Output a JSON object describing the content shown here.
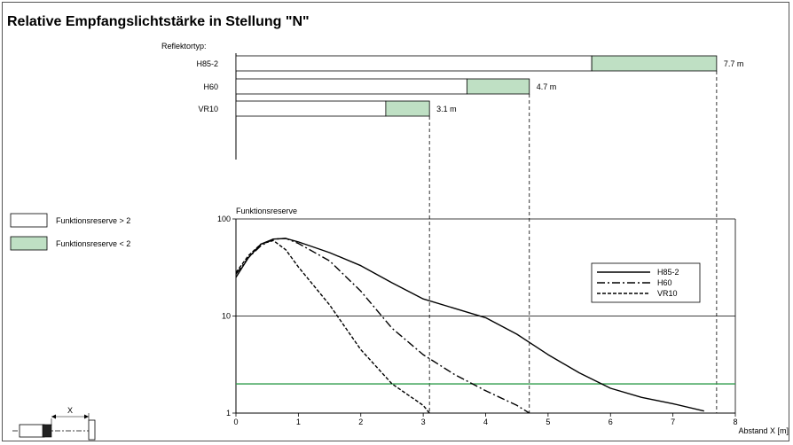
{
  "title": "Relative Empfangslichtstärke in Stellung \"N\"",
  "reflector_label": "Reflektortyp:",
  "reflectors": [
    {
      "name": "H85-2",
      "total_range": "7.7 m",
      "range_m": 7.7,
      "reserve_gt2_until_m": 5.7
    },
    {
      "name": "H60",
      "total_range": "4.7 m",
      "range_m": 4.7,
      "reserve_gt2_until_m": 3.7
    },
    {
      "name": "VR10",
      "total_range": "3.1 m",
      "range_m": 3.1,
      "reserve_gt2_until_m": 2.4
    }
  ],
  "legend_boxes": [
    {
      "label": "Funktionsreserve > 2",
      "color": "#ffffff"
    },
    {
      "label": "Funktionsreserve < 2",
      "color": "#bfe0c4"
    }
  ],
  "colors": {
    "green_line": "#2e9b4a",
    "green_fill": "#bfe0c4",
    "frame": "#555555"
  },
  "chart_data": {
    "type": "line",
    "title": "",
    "ylabel": "Funktionsreserve",
    "xlabel": "Abstand X [m]",
    "xlim": [
      0,
      8
    ],
    "ylim": [
      1,
      100
    ],
    "yscale": "log",
    "x_ticks": [
      "0",
      "1",
      "2",
      "3",
      "4",
      "5",
      "6",
      "7",
      "8"
    ],
    "y_ticks": [
      "1",
      "10",
      "100"
    ],
    "threshold": 2,
    "legend_position": "right",
    "series": [
      {
        "name": "H85-2",
        "style": "solid",
        "points": [
          [
            0,
            25
          ],
          [
            0.2,
            40
          ],
          [
            0.4,
            55
          ],
          [
            0.6,
            62
          ],
          [
            0.8,
            63
          ],
          [
            1,
            58
          ],
          [
            1.5,
            45
          ],
          [
            2,
            33
          ],
          [
            2.5,
            22
          ],
          [
            3,
            15
          ],
          [
            3.5,
            12
          ],
          [
            4,
            9.6
          ],
          [
            4.5,
            6.5
          ],
          [
            5,
            4
          ],
          [
            5.5,
            2.6
          ],
          [
            6,
            1.8
          ],
          [
            6.5,
            1.45
          ],
          [
            7,
            1.25
          ],
          [
            7.5,
            1.05
          ]
        ]
      },
      {
        "name": "H60",
        "style": "dashdot",
        "points": [
          [
            0,
            27
          ],
          [
            0.2,
            40
          ],
          [
            0.4,
            53
          ],
          [
            0.6,
            62
          ],
          [
            0.8,
            63
          ],
          [
            1,
            56
          ],
          [
            1.5,
            37
          ],
          [
            2,
            18
          ],
          [
            2.5,
            7.5
          ],
          [
            3,
            4
          ],
          [
            3.5,
            2.5
          ],
          [
            4,
            1.7
          ],
          [
            4.5,
            1.2
          ],
          [
            4.7,
            1.0
          ]
        ]
      },
      {
        "name": "VR10",
        "style": "dashed",
        "points": [
          [
            0,
            28
          ],
          [
            0.2,
            42
          ],
          [
            0.4,
            55
          ],
          [
            0.6,
            60
          ],
          [
            0.8,
            48
          ],
          [
            1,
            32
          ],
          [
            1.5,
            13
          ],
          [
            2,
            4.5
          ],
          [
            2.5,
            2
          ],
          [
            3,
            1.2
          ],
          [
            3.1,
            1.0
          ]
        ]
      }
    ]
  },
  "sensor_diagram": {
    "label": "X"
  }
}
